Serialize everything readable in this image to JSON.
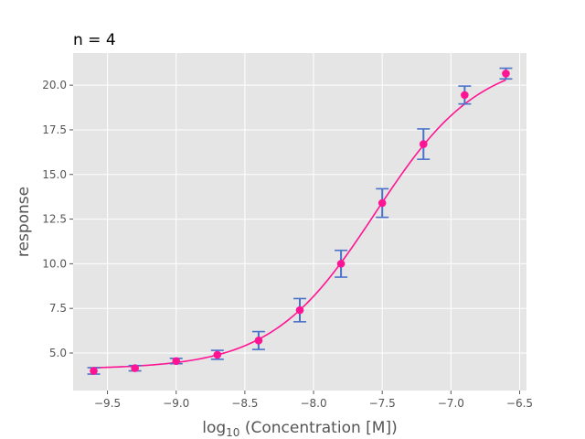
{
  "chart_data": {
    "type": "scatter",
    "title": "n = 4",
    "xlabel": "log10 (Concentration [M])",
    "ylabel": "response",
    "xlim": [
      -9.75,
      -6.45
    ],
    "ylim": [
      2.9,
      21.8
    ],
    "x_ticks": [
      -9.5,
      -9.0,
      -8.5,
      -8.0,
      -7.5,
      -7.0,
      -6.5
    ],
    "x_tick_labels": [
      "−9.5",
      "−9.0",
      "−8.5",
      "−8.0",
      "−7.5",
      "−7.0",
      "−6.5"
    ],
    "y_ticks": [
      5.0,
      7.5,
      10.0,
      12.5,
      15.0,
      17.5,
      20.0
    ],
    "y_tick_labels": [
      "5.0",
      "7.5",
      "10.0",
      "12.5",
      "15.0",
      "17.5",
      "20.0"
    ],
    "grid": true,
    "series": [
      {
        "x": [
          -9.6,
          -9.3,
          -9.0,
          -8.7,
          -8.4,
          -8.1,
          -7.8,
          -7.5,
          -7.2,
          -6.9,
          -6.6
        ],
        "y": [
          4.0,
          4.15,
          4.55,
          4.9,
          5.7,
          7.4,
          10.0,
          13.4,
          16.7,
          19.45,
          20.65
        ],
        "yerr": [
          0.18,
          0.15,
          0.15,
          0.25,
          0.5,
          0.65,
          0.75,
          0.8,
          0.85,
          0.5,
          0.3
        ],
        "marker_color": "#ff1493",
        "errorbar_color": "#4a72c9"
      }
    ],
    "fit_curve": {
      "model": "4-parameter logistic",
      "bottom": 4.1,
      "top": 21.6,
      "log_ec50": -7.55,
      "hill": 1.15,
      "color": "#ff1493"
    }
  }
}
